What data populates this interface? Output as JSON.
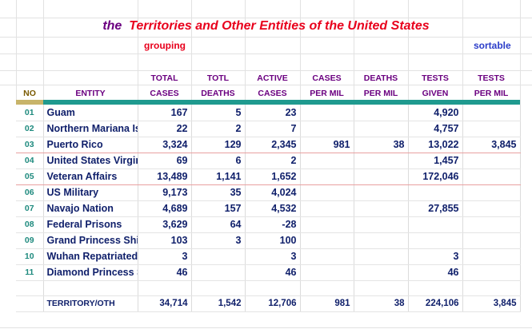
{
  "title_prefix": "the",
  "title_main": "Territories and Other Entities of the United States",
  "grouping_label": "grouping",
  "sortable_label": "sortable",
  "headers": {
    "no": "NO",
    "entity": "ENTITY",
    "total_cases": [
      "TOTAL",
      "CASES"
    ],
    "total_deaths": [
      "TOTL",
      "DEATHS"
    ],
    "active_cases": [
      "ACTIVE",
      "CASES"
    ],
    "cases_per_mil": [
      "CASES",
      "PER MIL"
    ],
    "deaths_per_mil": [
      "DEATHS",
      "PER MIL"
    ],
    "tests_given": [
      "TESTS",
      "GIVEN"
    ],
    "tests_per_mil": [
      "TESTS",
      "PER MIL"
    ]
  },
  "rows": [
    {
      "no": "01",
      "entity": "Guam",
      "cases": "167",
      "deaths": "5",
      "active": "23",
      "cpm": "",
      "dpm": "",
      "tests": "4,920",
      "tpm": ""
    },
    {
      "no": "02",
      "entity": "Northern Mariana Islands",
      "cases": "22",
      "deaths": "2",
      "active": "7",
      "cpm": "",
      "dpm": "",
      "tests": "4,757",
      "tpm": ""
    },
    {
      "no": "03",
      "entity": "Puerto Rico",
      "cases": "3,324",
      "deaths": "129",
      "active": "2,345",
      "cpm": "981",
      "dpm": "38",
      "tests": "13,022",
      "tpm": "3,845"
    },
    {
      "no": "04",
      "entity": "United States Virgin Islands",
      "cases": "69",
      "deaths": "6",
      "active": "2",
      "cpm": "",
      "dpm": "",
      "tests": "1,457",
      "tpm": ""
    },
    {
      "no": "05",
      "entity": "Veteran Affairs",
      "cases": "13,489",
      "deaths": "1,141",
      "active": "1,652",
      "cpm": "",
      "dpm": "",
      "tests": "172,046",
      "tpm": ""
    },
    {
      "no": "06",
      "entity": "US Military",
      "cases": "9,173",
      "deaths": "35",
      "active": "4,024",
      "cpm": "",
      "dpm": "",
      "tests": "",
      "tpm": ""
    },
    {
      "no": "07",
      "entity": "Navajo Nation",
      "cases": "4,689",
      "deaths": "157",
      "active": "4,532",
      "cpm": "",
      "dpm": "",
      "tests": "27,855",
      "tpm": ""
    },
    {
      "no": "08",
      "entity": "Federal Prisons",
      "cases": "3,629",
      "deaths": "64",
      "active": "-28",
      "cpm": "",
      "dpm": "",
      "tests": "",
      "tpm": ""
    },
    {
      "no": "09",
      "entity": "Grand Princess Ship",
      "cases": "103",
      "deaths": "3",
      "active": "100",
      "cpm": "",
      "dpm": "",
      "tests": "",
      "tpm": ""
    },
    {
      "no": "10",
      "entity": "Wuhan Repatriated",
      "cases": "3",
      "deaths": "",
      "active": "3",
      "cpm": "",
      "dpm": "",
      "tests": "3",
      "tpm": ""
    },
    {
      "no": "11",
      "entity": "Diamond Princess Ship",
      "cases": "46",
      "deaths": "",
      "active": "46",
      "cpm": "",
      "dpm": "",
      "tests": "46",
      "tpm": ""
    }
  ],
  "total": {
    "entity": "TERRITORY/OTH",
    "cases": "34,714",
    "deaths": "1,542",
    "active": "12,706",
    "cpm": "981",
    "dpm": "38",
    "tests": "224,106",
    "tpm": "3,845"
  }
}
